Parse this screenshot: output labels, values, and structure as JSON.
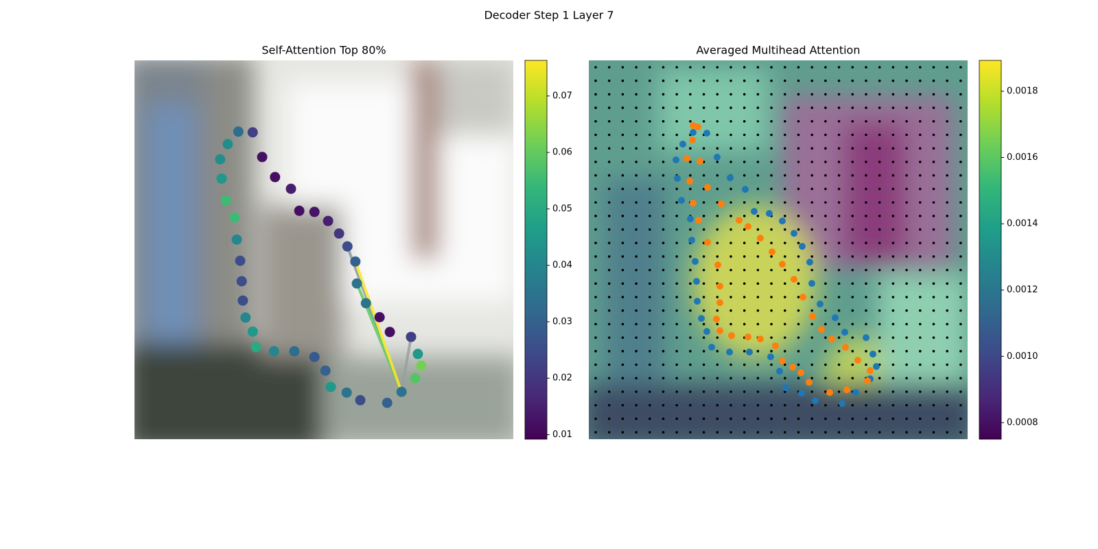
{
  "suptitle": "Decoder Step 1 Layer 7",
  "chart_data": [
    {
      "type": "scatter",
      "title": "Self-Attention Top 80%",
      "colormap": "viridis",
      "xlim": [
        0,
        100
      ],
      "ylim": [
        100,
        0
      ],
      "clim": [
        0.0092,
        0.0763
      ],
      "colorbar_ticks": [
        0.01,
        0.02,
        0.03,
        0.04,
        0.05,
        0.06,
        0.07
      ],
      "x": [
        27.4,
        31.2,
        24.6,
        22.6,
        23.0,
        24.1,
        26.4,
        27.0,
        27.9,
        28.3,
        28.6,
        29.3,
        31.2,
        32.1,
        36.8,
        42.2,
        47.5,
        50.4,
        51.8,
        56.0,
        59.6,
        66.7,
        70.5,
        74.1,
        75.7,
        74.8,
        73.0,
        67.4,
        64.7,
        61.1,
        58.7,
        58.3,
        56.2,
        54.0,
        51.1,
        47.5,
        43.5,
        41.3,
        37.1,
        33.7
      ],
      "y": [
        18.8,
        19.0,
        22.1,
        26.1,
        31.2,
        37.0,
        41.5,
        47.3,
        52.9,
        58.3,
        63.4,
        67.9,
        71.6,
        75.7,
        76.8,
        76.8,
        78.3,
        81.9,
        86.2,
        87.7,
        89.7,
        90.4,
        87.5,
        83.9,
        80.6,
        77.5,
        73.0,
        71.7,
        67.8,
        64.1,
        58.9,
        53.1,
        49.1,
        45.7,
        42.4,
        40.0,
        39.7,
        33.9,
        30.8,
        25.5
      ],
      "values": [
        0.033,
        0.022,
        0.042,
        0.042,
        0.045,
        0.055,
        0.055,
        0.04,
        0.025,
        0.025,
        0.025,
        0.04,
        0.045,
        0.05,
        0.04,
        0.033,
        0.028,
        0.03,
        0.045,
        0.035,
        0.025,
        0.03,
        0.035,
        0.058,
        0.062,
        0.045,
        0.022,
        0.012,
        0.012,
        0.035,
        0.035,
        0.03,
        0.025,
        0.02,
        0.015,
        0.013,
        0.012,
        0.015,
        0.012,
        0.012
      ]
    },
    {
      "type": "scatter",
      "title": "Averaged Multihead Attention",
      "colormap": "viridis",
      "xlim": [
        0,
        552
      ],
      "ylim": [
        552,
        0
      ],
      "clim": [
        0.00075,
        0.001893
      ],
      "colorbar_ticks": [
        0.0008,
        {
          "value": 0.001,
          "label": "0.0010"
        },
        0.0012,
        0.0014,
        0.0016,
        0.0018
      ],
      "series": [
        {
          "color": "#1f77b4",
          "x": [
            152,
            172,
            137,
            127,
            187,
            129,
            206,
            135,
            228,
            148,
            241,
            263,
            282,
            150,
            299,
            155,
            311,
            322,
            157,
            325,
            158,
            337,
            164,
            359,
            172,
            373,
            404,
            179,
            205,
            234,
            265,
            414,
            278,
            419,
            287,
            410,
            310,
            389,
            330,
            369
          ],
          "y": [
            105,
            106,
            122,
            145,
            141,
            172,
            171,
            204,
            188,
            231,
            220,
            223,
            234,
            262,
            252,
            293,
            271,
            294,
            322,
            325,
            351,
            355,
            376,
            375,
            395,
            396,
            404,
            418,
            425,
            425,
            432,
            428,
            453,
            446,
            477,
            464,
            485,
            484,
            496,
            500
          ]
        },
        {
          "color": "#ff7f0e",
          "x": [
            152,
            159,
            151,
            143,
            162,
            147,
            173,
            152,
            193,
            160,
            219,
            232,
            173,
            250,
            267,
            188,
            282,
            191,
            299,
            191,
            312,
            186,
            326,
            191,
            208,
            232,
            250,
            272,
            339,
            354,
            374,
            392,
            282,
            297,
            309,
            321,
            351,
            376,
            406,
            410
          ],
          "y": [
            95,
            97,
            116,
            143,
            147,
            176,
            185,
            208,
            209,
            233,
            233,
            242,
            265,
            259,
            279,
            298,
            297,
            329,
            319,
            353,
            345,
            377,
            373,
            394,
            401,
            403,
            406,
            416,
            392,
            406,
            418,
            437,
            438,
            447,
            455,
            469,
            484,
            480,
            467,
            452
          ]
        }
      ]
    }
  ]
}
